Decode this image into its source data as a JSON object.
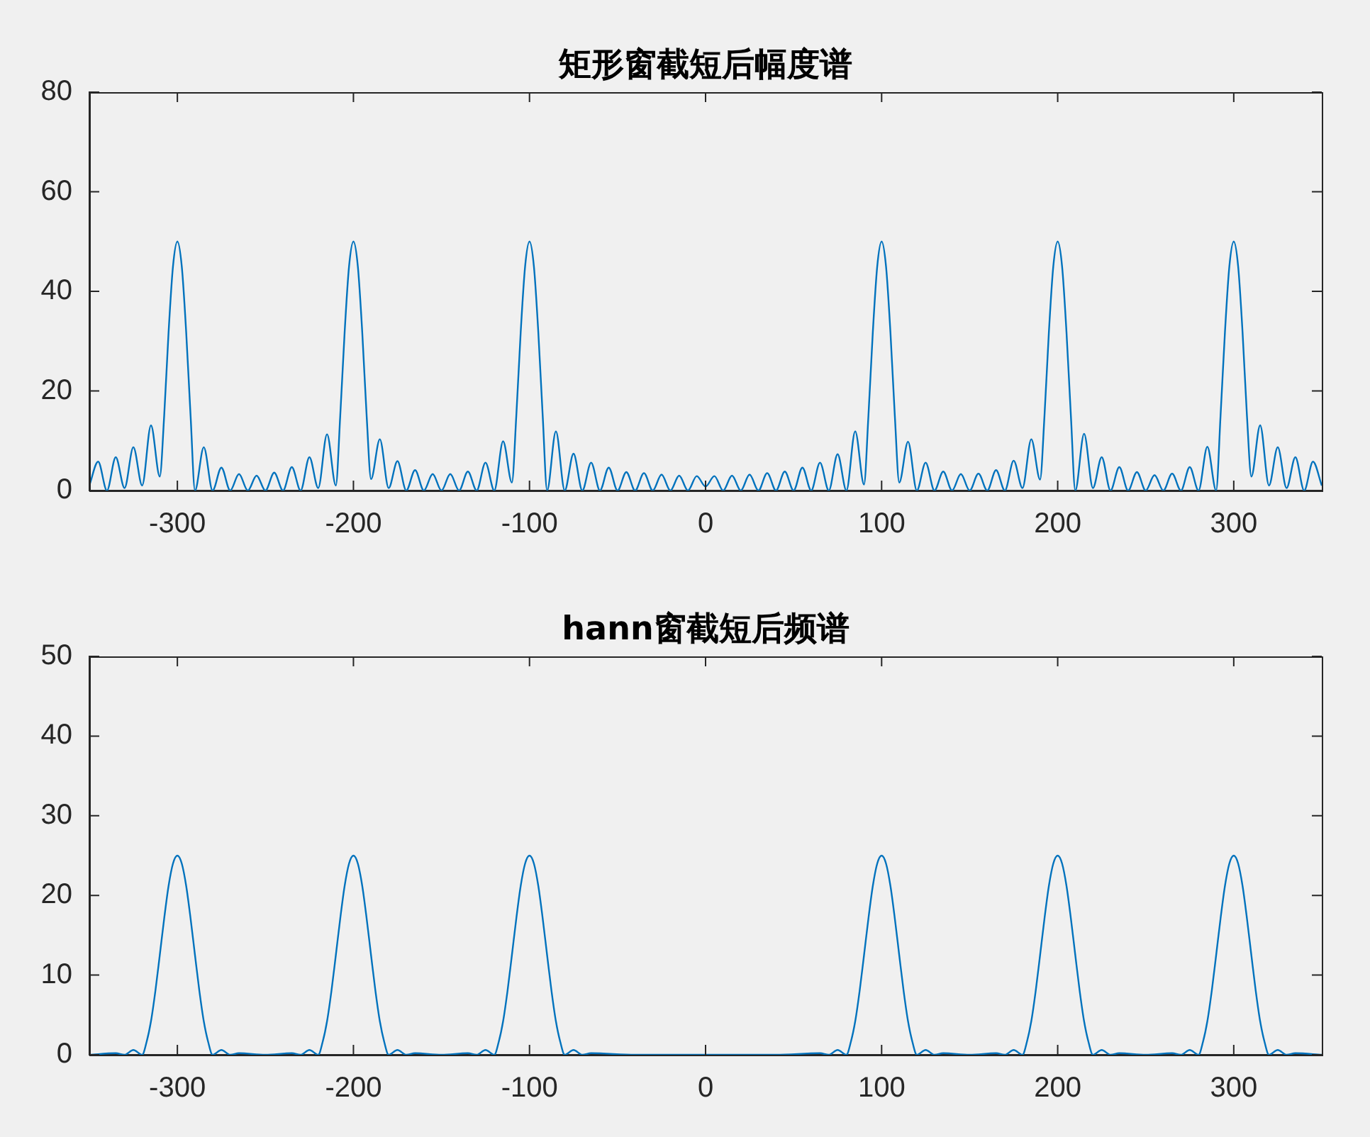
{
  "chart_data": [
    {
      "type": "line",
      "title": "矩形窗截短后幅度谱",
      "xlim": [
        -350,
        350
      ],
      "xticks": [
        -300,
        -200,
        -100,
        0,
        100,
        200,
        300
      ],
      "ylim": [
        0,
        80
      ],
      "yticks": [
        0,
        20,
        40,
        60,
        80
      ],
      "grid": false,
      "legend": false,
      "marker": "none",
      "line_style": "solid",
      "series": [
        {
          "color": "#0072bd",
          "x": [
            -350,
            -345,
            -340,
            -335,
            -330,
            -325,
            -320,
            -315,
            -310,
            -307.5,
            -305,
            -302.5,
            -300,
            -297.5,
            -295,
            -292.5,
            -290,
            -285,
            -280,
            -275,
            -270,
            -265,
            -260,
            -255,
            -250,
            -245,
            -240,
            -235,
            -230,
            -225,
            -220,
            -215,
            -210,
            -207.5,
            -205,
            -202.5,
            -200,
            -197.5,
            -195,
            -192.5,
            -190,
            -185,
            -180,
            -175,
            -170,
            -165,
            -160,
            -155,
            -150,
            -145,
            -140,
            -135,
            -130,
            -125,
            -120,
            -115,
            -110,
            -107.5,
            -105,
            -102.5,
            -100,
            -97.5,
            -95,
            -92.5,
            -90,
            -85,
            -80,
            -75,
            -70,
            -65,
            -60,
            -55,
            -50,
            -45,
            -40,
            -35,
            -30,
            -25,
            -20,
            -15,
            -10,
            -5,
            0,
            5,
            10,
            15,
            20,
            25,
            30,
            35,
            40,
            45,
            50,
            55,
            60,
            65,
            70,
            75,
            80,
            85,
            90,
            92.5,
            95,
            97.5,
            100,
            102.5,
            105,
            107.5,
            110,
            115,
            120,
            125,
            130,
            135,
            140,
            145,
            150,
            155,
            160,
            165,
            170,
            175,
            180,
            185,
            190,
            192.5,
            195,
            197.5,
            200,
            202.5,
            205,
            207.5,
            210,
            215,
            220,
            225,
            230,
            235,
            240,
            245,
            250,
            255,
            260,
            265,
            270,
            275,
            280,
            285,
            290,
            292.5,
            295,
            297.5,
            300,
            302.5,
            305,
            307.5,
            310,
            315,
            320,
            325,
            330,
            335,
            340,
            345,
            350
          ],
          "values": [
            1,
            5.8,
            0,
            6.7,
            0.5,
            8.7,
            1,
            13.1,
            2.8,
            15,
            31.8,
            45,
            50,
            45,
            31.8,
            15,
            0,
            8.7,
            0,
            4.6,
            0,
            3.3,
            0,
            3,
            0,
            3.6,
            0,
            4.7,
            0,
            6.7,
            0.5,
            11.3,
            1,
            15,
            31.8,
            45,
            50,
            45,
            31.8,
            15,
            2.3,
            10.3,
            0.5,
            5.9,
            0,
            4.1,
            0,
            3.3,
            0,
            3.3,
            0,
            3.8,
            0,
            5.6,
            0,
            9.9,
            1.6,
            15,
            31.8,
            45,
            50,
            45,
            31.8,
            15,
            0,
            11.9,
            0,
            7.4,
            0,
            5.6,
            0,
            4.6,
            0,
            3.7,
            0,
            3.5,
            0,
            3.2,
            0,
            3,
            0,
            2.9,
            0.8,
            2.9,
            0,
            3,
            0,
            3.2,
            0,
            3.5,
            0,
            3.8,
            0,
            4.6,
            0,
            5.6,
            0,
            7.3,
            0,
            11.9,
            1.2,
            15,
            31.8,
            45,
            50,
            45,
            31.8,
            15,
            1.6,
            9.8,
            0,
            5.6,
            0,
            3.8,
            0,
            3.3,
            0,
            3.4,
            0,
            4.1,
            0,
            6,
            0.5,
            10.3,
            2.2,
            15,
            31.8,
            45,
            50,
            45,
            31.8,
            15,
            0,
            11.4,
            0.5,
            6.7,
            0,
            4.7,
            0,
            3.7,
            0,
            3.1,
            0,
            3.4,
            0,
            4.7,
            0,
            8.8,
            0,
            15,
            31.8,
            45,
            50,
            45,
            31.8,
            15,
            2.8,
            13.1,
            1,
            8.7,
            0.5,
            6.7,
            0,
            5.8,
            1
          ]
        }
      ]
    },
    {
      "type": "line",
      "title": "hann窗截短后频谱",
      "xlim": [
        -350,
        350
      ],
      "xticks": [
        -300,
        -200,
        -100,
        0,
        100,
        200,
        300
      ],
      "ylim": [
        0,
        50
      ],
      "yticks": [
        0,
        10,
        20,
        30,
        40,
        50
      ],
      "grid": false,
      "legend": false,
      "marker": "none",
      "line_style": "solid",
      "series": [
        {
          "color": "#0072bd",
          "x": [
            -350,
            -335,
            -330,
            -325,
            -320,
            -317.5,
            -315,
            -312.5,
            -310,
            -307.5,
            -305,
            -302.5,
            -300,
            -297.5,
            -295,
            -292.5,
            -290,
            -287.5,
            -285,
            -282.5,
            -280,
            -275,
            -270,
            -265,
            -250,
            -235,
            -230,
            -225,
            -220,
            -217.5,
            -215,
            -212.5,
            -210,
            -207.5,
            -205,
            -202.5,
            -200,
            -197.5,
            -195,
            -192.5,
            -190,
            -187.5,
            -185,
            -182.5,
            -180,
            -175,
            -170,
            -165,
            -150,
            -135,
            -130,
            -125,
            -120,
            -117.5,
            -115,
            -112.5,
            -110,
            -107.5,
            -105,
            -102.5,
            -100,
            -97.5,
            -95,
            -92.5,
            -90,
            -87.5,
            -85,
            -82.5,
            -80,
            -75,
            -70,
            -65,
            -40,
            0,
            40,
            65,
            70,
            75,
            80,
            82.5,
            85,
            87.5,
            90,
            92.5,
            95,
            97.5,
            100,
            102.5,
            105,
            107.5,
            110,
            112.5,
            115,
            117.5,
            120,
            125,
            130,
            135,
            150,
            165,
            170,
            175,
            180,
            182.5,
            185,
            187.5,
            190,
            192.5,
            195,
            197.5,
            200,
            202.5,
            205,
            207.5,
            210,
            212.5,
            215,
            217.5,
            220,
            225,
            230,
            235,
            250,
            265,
            270,
            275,
            280,
            282.5,
            285,
            287.5,
            290,
            292.5,
            295,
            297.5,
            300,
            302.5,
            305,
            307.5,
            310,
            312.5,
            315,
            317.5,
            320,
            325,
            330,
            335,
            350
          ],
          "values": [
            0,
            0.2,
            0,
            0.6,
            0,
            1.6,
            4.2,
            8,
            12.5,
            17.1,
            21.2,
            24,
            25,
            24,
            21.2,
            17.1,
            12.5,
            8,
            4.2,
            1.6,
            0,
            0.6,
            0,
            0.2,
            0,
            0.2,
            0,
            0.6,
            0,
            1.6,
            4.2,
            8,
            12.5,
            17.1,
            21.2,
            24,
            25,
            24,
            21.2,
            17.1,
            12.5,
            8,
            4.2,
            1.6,
            0,
            0.6,
            0,
            0.2,
            0,
            0.2,
            0,
            0.6,
            0,
            1.6,
            4.2,
            8,
            12.5,
            17.1,
            21.2,
            24,
            25,
            24,
            21.2,
            17.1,
            12.5,
            8,
            4.2,
            1.6,
            0,
            0.6,
            0,
            0.2,
            0,
            0,
            0,
            0.2,
            0,
            0.6,
            0,
            1.6,
            4.2,
            8,
            12.5,
            17.1,
            21.2,
            24,
            25,
            24,
            21.2,
            17.1,
            12.5,
            8,
            4.2,
            1.6,
            0,
            0.6,
            0,
            0.2,
            0,
            0.2,
            0,
            0.6,
            0,
            1.6,
            4.2,
            8,
            12.5,
            17.1,
            21.2,
            24,
            25,
            24,
            21.2,
            17.1,
            12.5,
            8,
            4.2,
            1.6,
            0,
            0.6,
            0,
            0.2,
            0,
            0.2,
            0,
            0.6,
            0,
            1.6,
            4.2,
            8,
            12.5,
            17.1,
            21.2,
            24,
            25,
            24,
            21.2,
            17.1,
            12.5,
            8,
            4.2,
            1.6,
            0,
            0.6,
            0,
            0.2,
            0
          ]
        }
      ]
    }
  ]
}
